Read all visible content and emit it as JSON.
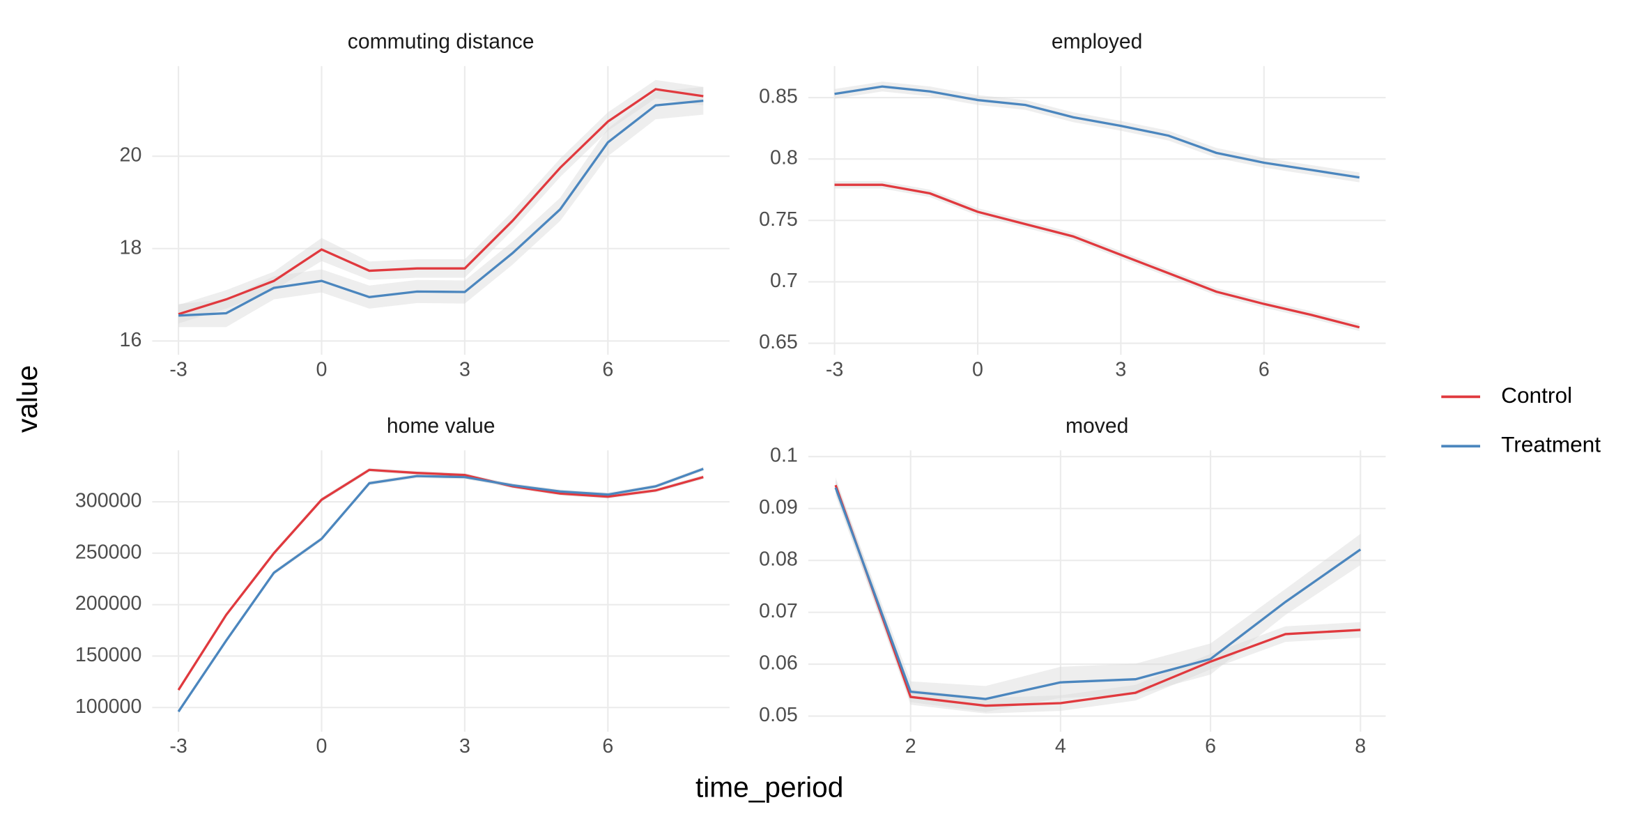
{
  "axis_labels": {
    "x": "time_period",
    "y": "value"
  },
  "chart_data": [
    {
      "type": "line",
      "title": "commuting distance",
      "x": [
        -3,
        -2,
        -1,
        0,
        1,
        2,
        3,
        4,
        5,
        6,
        7,
        8
      ],
      "xlim": [
        -3.55,
        8.55
      ],
      "xticks": [
        -3,
        0,
        3,
        6
      ],
      "ylim": [
        15.7,
        21.95
      ],
      "yticks": [
        16,
        18,
        20
      ],
      "grid": true,
      "series": [
        {
          "name": "Control",
          "color": "#E0393E",
          "values": [
            16.58,
            16.9,
            17.3,
            17.98,
            17.52,
            17.57,
            17.57,
            18.6,
            19.75,
            20.75,
            21.45,
            21.3
          ],
          "error": [
            0.2,
            0.2,
            0.2,
            0.25,
            0.2,
            0.2,
            0.2,
            0.2,
            0.2,
            0.2,
            0.2,
            0.2
          ]
        },
        {
          "name": "Treatment",
          "color": "#4B86BE",
          "values": [
            16.55,
            16.6,
            17.15,
            17.3,
            16.95,
            17.07,
            17.06,
            17.9,
            18.85,
            20.3,
            21.1,
            21.2
          ],
          "error": [
            0.25,
            0.3,
            0.25,
            0.25,
            0.25,
            0.25,
            0.25,
            0.25,
            0.25,
            0.3,
            0.3,
            0.3
          ]
        }
      ]
    },
    {
      "type": "line",
      "title": "employed",
      "x": [
        -3,
        -2,
        -1,
        0,
        1,
        2,
        3,
        4,
        5,
        6,
        7,
        8
      ],
      "xlim": [
        -3.55,
        8.55
      ],
      "xticks": [
        -3,
        0,
        3,
        6
      ],
      "ylim": [
        0.6406,
        0.8756
      ],
      "yticks": [
        0.65,
        0.7,
        0.75,
        0.8,
        0.85
      ],
      "grid": true,
      "series": [
        {
          "name": "Control",
          "color": "#E0393E",
          "values": [
            0.779,
            0.779,
            0.772,
            0.757,
            0.747,
            0.737,
            0.722,
            0.707,
            0.692,
            0.682,
            0.673,
            0.663
          ],
          "error": [
            0.003,
            0.003,
            0.003,
            0.003,
            0.003,
            0.003,
            0.003,
            0.003,
            0.003,
            0.003,
            0.003,
            0.003
          ]
        },
        {
          "name": "Treatment",
          "color": "#4B86BE",
          "values": [
            0.853,
            0.859,
            0.855,
            0.848,
            0.844,
            0.834,
            0.827,
            0.819,
            0.805,
            0.797,
            0.791,
            0.785
          ],
          "error": [
            0.004,
            0.004,
            0.004,
            0.004,
            0.004,
            0.004,
            0.004,
            0.004,
            0.004,
            0.004,
            0.004,
            0.004
          ]
        }
      ]
    },
    {
      "type": "line",
      "title": "home value",
      "x": [
        -3,
        -2,
        -1,
        0,
        1,
        2,
        3,
        4,
        5,
        6,
        7,
        8
      ],
      "xlim": [
        -3.55,
        8.55
      ],
      "xticks": [
        -3,
        0,
        3,
        6
      ],
      "ylim": [
        76500,
        350000
      ],
      "yticks": [
        100000,
        150000,
        200000,
        250000,
        300000
      ],
      "grid": true,
      "series": [
        {
          "name": "Control",
          "color": "#E0393E",
          "values": [
            117000,
            190000,
            250000,
            302000,
            331000,
            328000,
            326000,
            315000,
            308000,
            305000,
            311000,
            324000
          ],
          "error": [
            2000,
            2000,
            2000,
            2000,
            2000,
            2000,
            2000,
            2000,
            2000,
            2000,
            2000,
            2000
          ]
        },
        {
          "name": "Treatment",
          "color": "#4B86BE",
          "values": [
            96000,
            165000,
            231000,
            264000,
            318000,
            325000,
            324000,
            316000,
            310000,
            307000,
            315000,
            332000
          ],
          "error": [
            2000,
            2000,
            2000,
            2000,
            2000,
            2000,
            2000,
            2000,
            2000,
            2000,
            2000,
            2000
          ]
        }
      ]
    },
    {
      "type": "line",
      "title": "moved",
      "x": [
        1,
        2,
        3,
        4,
        5,
        6,
        7,
        8
      ],
      "xlim": [
        0.636,
        8.336
      ],
      "xticks": [
        2,
        4,
        6,
        8
      ],
      "ylim": [
        0.047,
        0.1012
      ],
      "yticks": [
        0.05,
        0.06,
        0.07,
        0.08,
        0.09,
        0.1
      ],
      "grid": true,
      "series": [
        {
          "name": "Control",
          "color": "#E0393E",
          "values": [
            0.0945,
            0.0537,
            0.052,
            0.0525,
            0.0545,
            0.0605,
            0.0658,
            0.0666
          ],
          "error": [
            0.0015,
            0.0015,
            0.0015,
            0.0015,
            0.0015,
            0.0015,
            0.0015,
            0.0015
          ]
        },
        {
          "name": "Treatment",
          "color": "#4B86BE",
          "values": [
            0.094,
            0.0547,
            0.0533,
            0.0565,
            0.0571,
            0.061,
            0.072,
            0.0821
          ],
          "error": [
            0.0015,
            0.002,
            0.0025,
            0.003,
            0.003,
            0.003,
            0.0025,
            0.003
          ]
        }
      ]
    }
  ]
}
